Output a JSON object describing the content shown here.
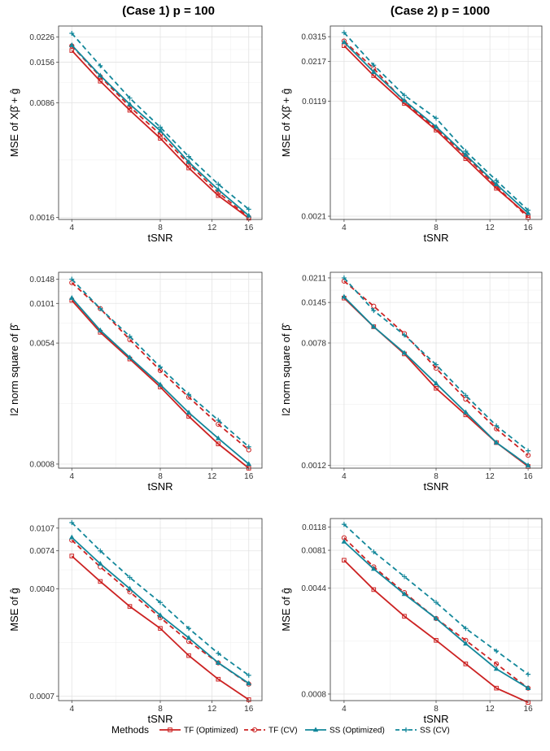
{
  "titles": [
    "(Case 1) p = 100",
    "(Case 2) p = 1000"
  ],
  "legend": {
    "title": "Methods",
    "position": "bottom",
    "entries": [
      {
        "name": "TF (Optimized)",
        "color": "#cc2222",
        "dash": "solid",
        "marker": "square"
      },
      {
        "name": "TF (CV)",
        "color": "#cc2222",
        "dash": "dashed",
        "marker": "circle"
      },
      {
        "name": "SS (Optimized)",
        "color": "#12879a",
        "dash": "solid",
        "marker": "triangle"
      },
      {
        "name": "SS (CV)",
        "color": "#12879a",
        "dash": "dashed",
        "marker": "plus"
      }
    ]
  },
  "chart_data": [
    {
      "type": "line",
      "panel": "row1-col1",
      "title": "(Case 1) p = 100",
      "xlabel": "tSNR",
      "ylabel": "MSE of Xβ̂ + ĝ",
      "log_x": true,
      "log_y": true,
      "x": [
        4,
        5,
        6.3,
        8,
        10,
        12.6,
        16
      ],
      "xticks": [
        4,
        8,
        12,
        16
      ],
      "yticks": [
        "0.0226",
        "0.0156",
        "0.0086",
        "0.0016"
      ],
      "ylim": [
        0.00155,
        0.0265
      ],
      "series": [
        {
          "name": "TF (Optimized)",
          "values": [
            0.0185,
            0.0118,
            0.0077,
            0.0051,
            0.0033,
            0.0022,
            0.00158
          ]
        },
        {
          "name": "TF (CV)",
          "values": [
            0.0198,
            0.0126,
            0.0081,
            0.0054,
            0.0035,
            0.0023,
            0.0016
          ]
        },
        {
          "name": "SS (Optimized)",
          "values": [
            0.02,
            0.0128,
            0.0084,
            0.0057,
            0.0036,
            0.0024,
            0.00164
          ]
        },
        {
          "name": "SS (CV)",
          "values": [
            0.0238,
            0.0148,
            0.0092,
            0.006,
            0.0039,
            0.0026,
            0.0018
          ]
        }
      ]
    },
    {
      "type": "line",
      "panel": "row1-col2",
      "title": "(Case 2) p = 1000",
      "xlabel": "tSNR",
      "ylabel": "MSE of Xβ̂ + ĝ",
      "log_x": true,
      "log_y": true,
      "x": [
        4,
        5,
        6.3,
        8,
        10,
        12.6,
        16
      ],
      "xticks": [
        4,
        8,
        12,
        16
      ],
      "yticks": [
        "0.0315",
        "0.0217",
        "0.0119",
        "0.0021"
      ],
      "ylim": [
        0.002,
        0.037
      ],
      "series": [
        {
          "name": "TF (Optimized)",
          "values": [
            0.0275,
            0.0175,
            0.0115,
            0.0077,
            0.005,
            0.0032,
            0.00212
          ]
        },
        {
          "name": "TF (CV)",
          "values": [
            0.0295,
            0.0195,
            0.0118,
            0.0079,
            0.0052,
            0.0033,
            0.00205
          ]
        },
        {
          "name": "SS (Optimized)",
          "values": [
            0.029,
            0.0185,
            0.012,
            0.0081,
            0.0053,
            0.0034,
            0.0022
          ]
        },
        {
          "name": "SS (CV)",
          "values": [
            0.0335,
            0.0205,
            0.013,
            0.0092,
            0.0056,
            0.0036,
            0.0023
          ]
        }
      ]
    },
    {
      "type": "line",
      "panel": "row2-col1",
      "title": "",
      "xlabel": "tSNR",
      "ylabel": "l2 norm square of β̂",
      "log_x": true,
      "log_y": true,
      "x": [
        4,
        5,
        6.3,
        8,
        10,
        12.6,
        16
      ],
      "xticks": [
        4,
        8,
        12,
        16
      ],
      "yticks": [
        "0.0148",
        "0.0101",
        "0.0054",
        "0.0008"
      ],
      "ylim": [
        0.00075,
        0.0165
      ],
      "series": [
        {
          "name": "TF (Optimized)",
          "values": [
            0.0106,
            0.0064,
            0.0042,
            0.0027,
            0.0017,
            0.0011,
            0.00075
          ]
        },
        {
          "name": "TF (CV)",
          "values": [
            0.014,
            0.0093,
            0.0057,
            0.0035,
            0.0023,
            0.0015,
            0.001
          ]
        },
        {
          "name": "SS (Optimized)",
          "values": [
            0.011,
            0.0066,
            0.0043,
            0.0028,
            0.0018,
            0.0012,
            0.0008
          ]
        },
        {
          "name": "SS (CV)",
          "values": [
            0.0148,
            0.0093,
            0.006,
            0.0037,
            0.0024,
            0.0016,
            0.00105
          ]
        }
      ]
    },
    {
      "type": "line",
      "panel": "row2-col2",
      "title": "",
      "xlabel": "tSNR",
      "ylabel": "l2 norm square of β̂",
      "log_x": true,
      "log_y": true,
      "x": [
        4,
        5,
        6.3,
        8,
        10,
        12.6,
        16
      ],
      "xticks": [
        4,
        8,
        12,
        16
      ],
      "yticks": [
        "0.0211",
        "0.0145",
        "0.0078",
        "0.0012"
      ],
      "ylim": [
        0.00115,
        0.023
      ],
      "series": [
        {
          "name": "TF (Optimized)",
          "values": [
            0.0155,
            0.01,
            0.0066,
            0.0039,
            0.0026,
            0.0017,
            0.00118
          ]
        },
        {
          "name": "TF (CV)",
          "values": [
            0.0201,
            0.0137,
            0.009,
            0.0053,
            0.0033,
            0.0021,
            0.0014
          ]
        },
        {
          "name": "SS (Optimized)",
          "values": [
            0.0158,
            0.01,
            0.0067,
            0.0042,
            0.0027,
            0.0017,
            0.0012
          ]
        },
        {
          "name": "SS (CV)",
          "values": [
            0.0211,
            0.0128,
            0.0088,
            0.0056,
            0.0035,
            0.0022,
            0.0015
          ]
        }
      ]
    },
    {
      "type": "line",
      "panel": "row3-col1",
      "title": "",
      "xlabel": "tSNR",
      "ylabel": "MSE of ĝ",
      "log_x": true,
      "log_y": true,
      "x": [
        4,
        5,
        6.3,
        8,
        10,
        12.6,
        16
      ],
      "xticks": [
        4,
        8,
        12,
        16
      ],
      "yticks": [
        "0.0107",
        "0.0074",
        "0.0040",
        "0.0007"
      ],
      "ylim": [
        0.00065,
        0.0125
      ],
      "series": [
        {
          "name": "TF (Optimized)",
          "values": [
            0.0068,
            0.0045,
            0.003,
            0.0021,
            0.00135,
            0.00092,
            0.00066
          ]
        },
        {
          "name": "TF (CV)",
          "values": [
            0.0088,
            0.0057,
            0.0038,
            0.0025,
            0.0017,
            0.0012,
            0.00085
          ]
        },
        {
          "name": "SS (Optimized)",
          "values": [
            0.0092,
            0.006,
            0.004,
            0.0026,
            0.0018,
            0.0012,
            0.00086
          ]
        },
        {
          "name": "SS (CV)",
          "values": [
            0.0117,
            0.0074,
            0.0048,
            0.0032,
            0.0021,
            0.0014,
            0.00098
          ]
        }
      ]
    },
    {
      "type": "line",
      "panel": "row3-col2",
      "title": "",
      "xlabel": "tSNR",
      "ylabel": "MSE of ĝ",
      "log_x": true,
      "log_y": true,
      "x": [
        4,
        5,
        6.3,
        8,
        10,
        12.6,
        16
      ],
      "xticks": [
        4,
        8,
        12,
        16
      ],
      "yticks": [
        "0.0118",
        "0.0081",
        "0.0044",
        "0.0008"
      ],
      "ylim": [
        0.00072,
        0.0135
      ],
      "series": [
        {
          "name": "TF (Optimized)",
          "values": [
            0.0069,
            0.0043,
            0.0028,
            0.0019,
            0.0013,
            0.00088,
            0.0007
          ]
        },
        {
          "name": "TF (CV)",
          "values": [
            0.0099,
            0.0062,
            0.0041,
            0.0027,
            0.0019,
            0.0013,
            0.00088
          ]
        },
        {
          "name": "SS (Optimized)",
          "values": [
            0.0093,
            0.006,
            0.004,
            0.0027,
            0.0018,
            0.0012,
            0.00088
          ]
        },
        {
          "name": "SS (CV)",
          "values": [
            0.0123,
            0.0079,
            0.0053,
            0.0035,
            0.0023,
            0.0016,
            0.0011
          ]
        }
      ]
    }
  ]
}
